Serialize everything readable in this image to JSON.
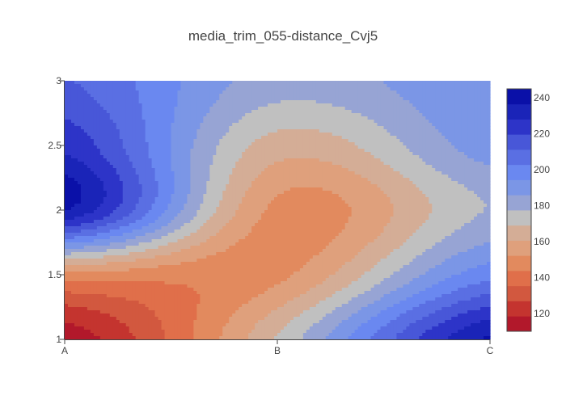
{
  "chart_data": {
    "type": "contour",
    "title": "media_trim_055-distance_Cvj5",
    "xlabel": "",
    "ylabel": "",
    "x_categories": [
      "A",
      "B",
      "C"
    ],
    "y_ticks": [
      "1",
      "1.5",
      "2",
      "2.5",
      "3"
    ],
    "ylim": [
      1,
      3
    ],
    "z_range": [
      110,
      245
    ],
    "colorbar": {
      "ticks": [
        "120",
        "140",
        "160",
        "180",
        "200",
        "220",
        "240"
      ],
      "tick_values": [
        120,
        140,
        160,
        180,
        200,
        220,
        240
      ],
      "colors": [
        "#b2182b",
        "#c4342f",
        "#d2583f",
        "#e06f4a",
        "#e28a5e",
        "#dfa07c",
        "#d4ad96",
        "#c0c0c0",
        "#97a4d4",
        "#7b96e6",
        "#6a88f0",
        "#5a6fe3",
        "#4857d8",
        "#2d34c8",
        "#1a24b8",
        "#0a10a8"
      ]
    },
    "surface_anchors": {
      "x": [
        "A",
        "B",
        "C"
      ],
      "y": [
        1,
        1.5,
        2,
        2.5,
        3
      ],
      "z": [
        [
          112,
          170,
          238
        ],
        [
          150,
          150,
          200
        ],
        [
          237,
          150,
          178
        ],
        [
          226,
          165,
          190
        ],
        [
          212,
          182,
          194
        ]
      ]
    }
  }
}
